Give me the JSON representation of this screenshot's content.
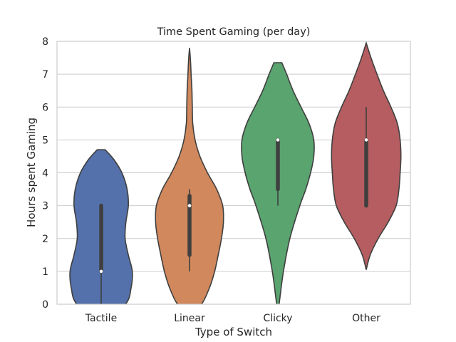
{
  "chart_data": {
    "type": "violin",
    "title": "Time Spent Gaming (per day)",
    "xlabel": "Type of Switch",
    "ylabel": "Hours spent Gaming",
    "ylim": [
      0,
      8
    ],
    "yticks": [
      0,
      1,
      2,
      3,
      4,
      5,
      6,
      7,
      8
    ],
    "grid": true,
    "categories": [
      "Tactile",
      "Linear",
      "Clicky",
      "Other"
    ],
    "colors": [
      "#5471ab",
      "#d1885c",
      "#59a46f",
      "#b55d60"
    ],
    "series": [
      {
        "category": "Tactile",
        "min": 0,
        "q1": 1.0,
        "median": 1.0,
        "q3": 3.0,
        "max": 3.0,
        "whisker_low": 0,
        "density": [
          [
            -0.7,
            0.0
          ],
          [
            0.0,
            0.61
          ],
          [
            0.5,
            0.75
          ],
          [
            1.0,
            0.78
          ],
          [
            1.5,
            0.68
          ],
          [
            2.0,
            0.6
          ],
          [
            2.5,
            0.62
          ],
          [
            3.0,
            0.68
          ],
          [
            3.5,
            0.65
          ],
          [
            4.0,
            0.52
          ],
          [
            4.4,
            0.32
          ],
          [
            4.7,
            0.1
          ]
        ]
      },
      {
        "category": "Linear",
        "min": 1.0,
        "q1": 1.5,
        "median": 3.0,
        "q3": 3.3,
        "max": 3.5,
        "whisker_low": 1.0,
        "density": [
          [
            -0.3,
            0.0
          ],
          [
            0.0,
            0.3
          ],
          [
            0.5,
            0.5
          ],
          [
            1.0,
            0.63
          ],
          [
            1.5,
            0.72
          ],
          [
            2.0,
            0.8
          ],
          [
            2.5,
            0.85
          ],
          [
            3.0,
            0.83
          ],
          [
            3.5,
            0.68
          ],
          [
            4.0,
            0.45
          ],
          [
            4.5,
            0.26
          ],
          [
            5.0,
            0.14
          ],
          [
            5.5,
            0.08
          ],
          [
            6.0,
            0.07
          ],
          [
            6.5,
            0.06
          ],
          [
            7.0,
            0.04
          ],
          [
            7.5,
            0.02
          ],
          [
            7.8,
            0.0
          ]
        ]
      },
      {
        "category": "Clicky",
        "min": 3.0,
        "q1": 3.5,
        "median": 5.0,
        "q3": 5.0,
        "max": 5.0,
        "whisker_low": 3.0,
        "density": [
          [
            -0.2,
            0.0
          ],
          [
            0.0,
            0.03
          ],
          [
            1.0,
            0.14
          ],
          [
            2.0,
            0.3
          ],
          [
            3.0,
            0.55
          ],
          [
            3.5,
            0.7
          ],
          [
            4.0,
            0.82
          ],
          [
            4.5,
            0.9
          ],
          [
            5.0,
            0.9
          ],
          [
            5.5,
            0.78
          ],
          [
            6.0,
            0.58
          ],
          [
            6.5,
            0.38
          ],
          [
            7.0,
            0.22
          ],
          [
            7.35,
            0.1
          ]
        ]
      },
      {
        "category": "Other",
        "min": 3.0,
        "q1": 3.0,
        "median": 5.0,
        "q3": 5.0,
        "max": 6.0,
        "whisker_low": 3.0,
        "density": [
          [
            1.05,
            0.0
          ],
          [
            1.5,
            0.1
          ],
          [
            2.0,
            0.3
          ],
          [
            2.5,
            0.55
          ],
          [
            3.0,
            0.75
          ],
          [
            3.5,
            0.82
          ],
          [
            4.0,
            0.85
          ],
          [
            4.5,
            0.87
          ],
          [
            5.0,
            0.85
          ],
          [
            5.5,
            0.78
          ],
          [
            6.0,
            0.62
          ],
          [
            6.5,
            0.43
          ],
          [
            7.0,
            0.27
          ],
          [
            7.5,
            0.12
          ],
          [
            7.95,
            0.0
          ]
        ]
      }
    ]
  }
}
